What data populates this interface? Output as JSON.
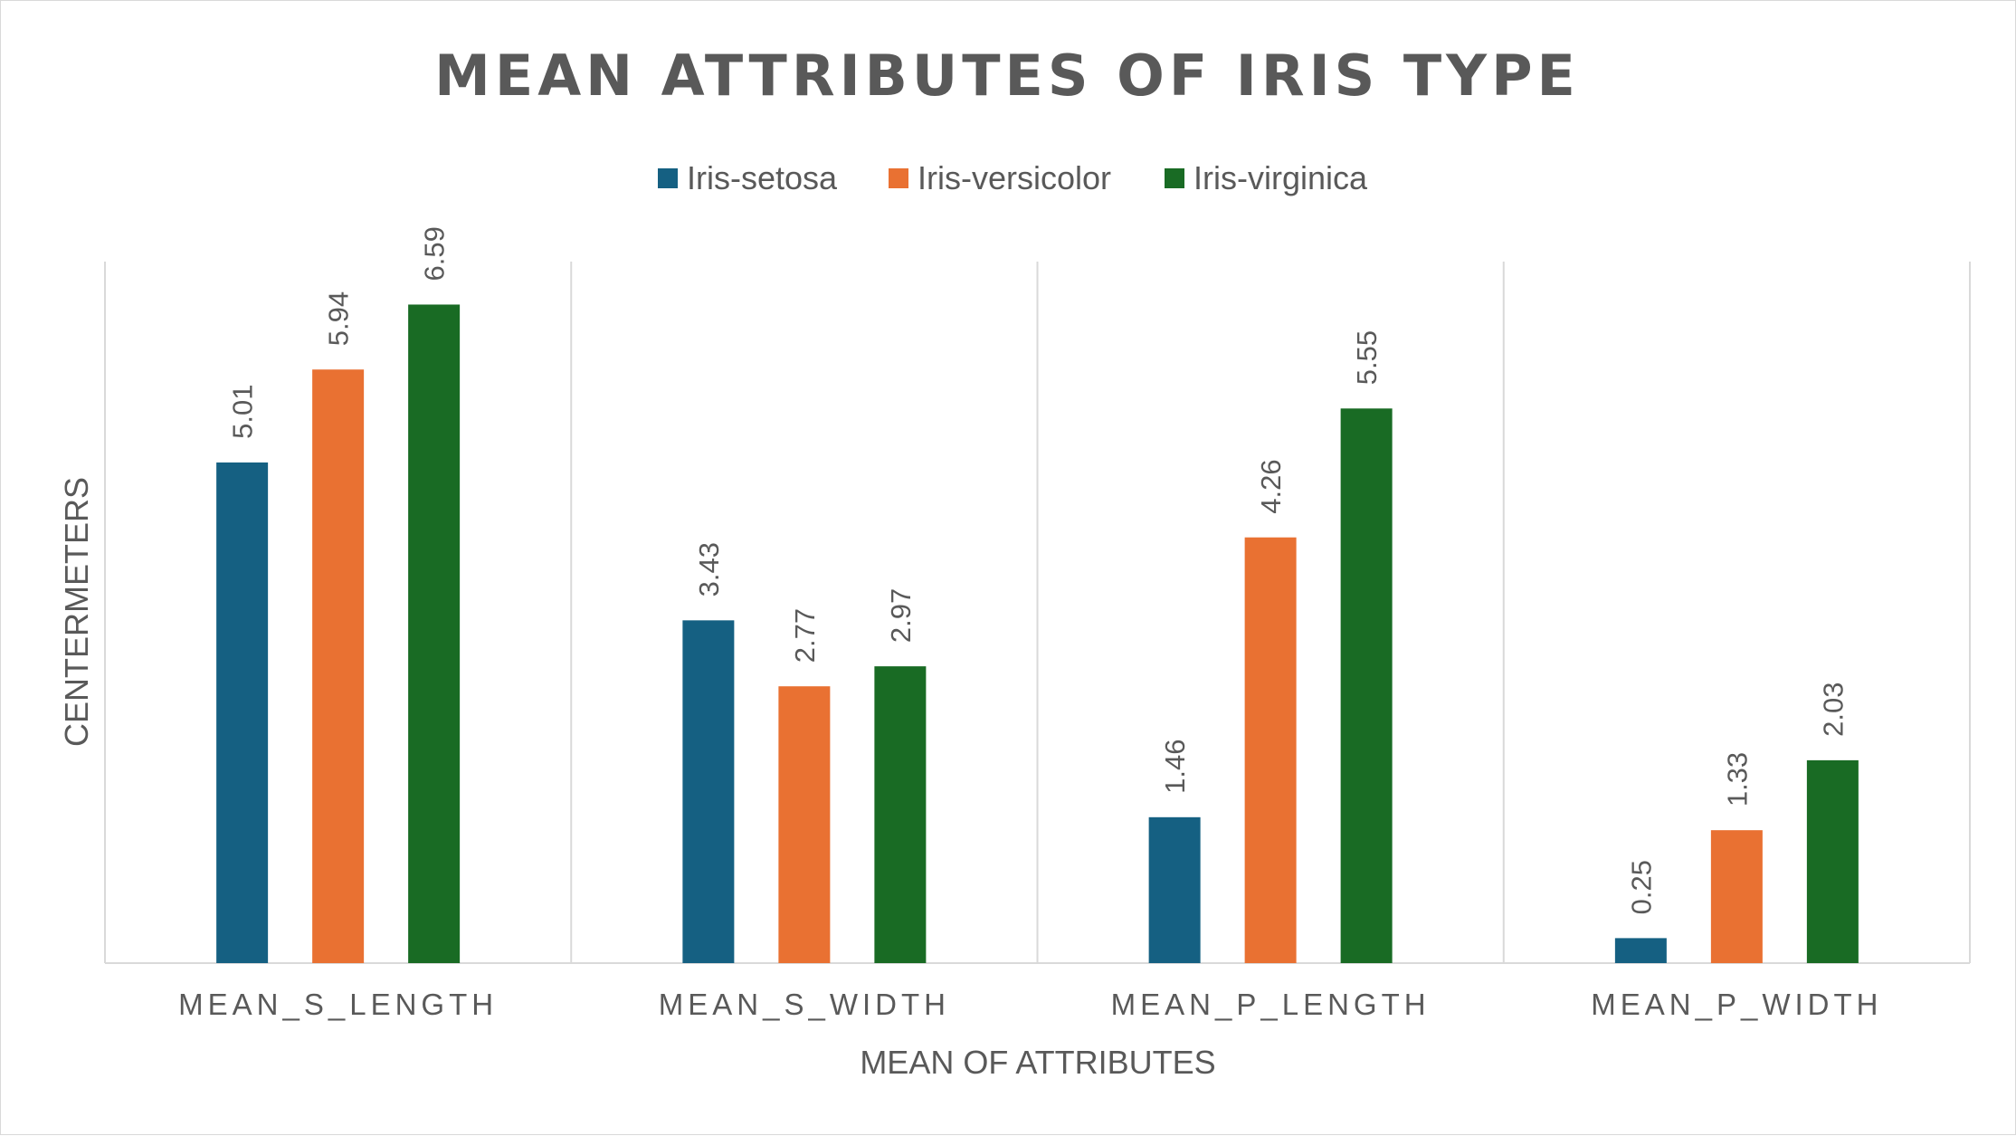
{
  "chart_data": {
    "type": "bar",
    "title": "MEAN ATTRIBUTES OF IRIS TYPE",
    "xlabel": "MEAN OF ATTRIBUTES",
    "ylabel": "CENTERMETERS",
    "categories": [
      "MEAN_S_LENGTH",
      "MEAN_S_WIDTH",
      "MEAN_P_LENGTH",
      "MEAN_P_WIDTH"
    ],
    "series": [
      {
        "name": "Iris-setosa",
        "color": "#156082",
        "values": [
          5.01,
          3.43,
          1.46,
          0.25
        ],
        "labels": [
          "5.01",
          "3.43",
          "1.46",
          "0.25"
        ]
      },
      {
        "name": "Iris-versicolor",
        "color": "#E97132",
        "values": [
          5.94,
          2.77,
          4.26,
          1.33
        ],
        "labels": [
          "5.94",
          "2.77",
          "4.26",
          "1.33"
        ]
      },
      {
        "name": "Iris-virginica",
        "color": "#196B24",
        "values": [
          6.59,
          2.97,
          5.55,
          2.03
        ],
        "labels": [
          "6.59",
          "2.97",
          "5.55",
          "2.03"
        ]
      }
    ],
    "ylim": [
      0,
      7
    ],
    "y_axis_visible": false,
    "grid": "vertical category separators",
    "legend_position": "top",
    "data_labels": "rotated vertical, above bars"
  }
}
